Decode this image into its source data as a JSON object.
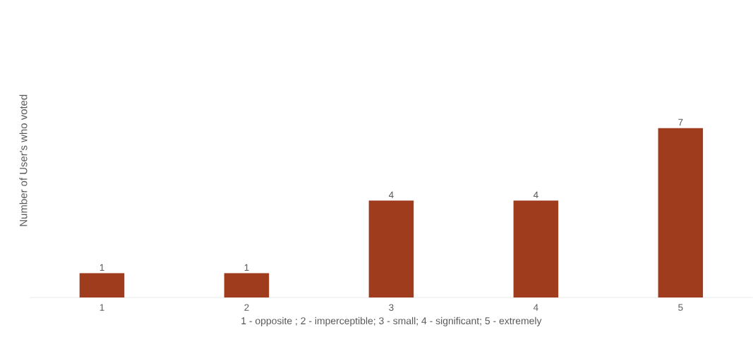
{
  "chart_data": {
    "type": "bar",
    "xlabel": "1 - opposite ; 2 - imperceptible; 3 - small; 4 - significant; 5 - extremely",
    "ylabel": "Number of User's who voted",
    "categories": [
      "1",
      "2",
      "3",
      "4",
      "5"
    ],
    "values": [
      1,
      1,
      4,
      4,
      7
    ],
    "color": "#a03c1e",
    "data_labels": true
  }
}
